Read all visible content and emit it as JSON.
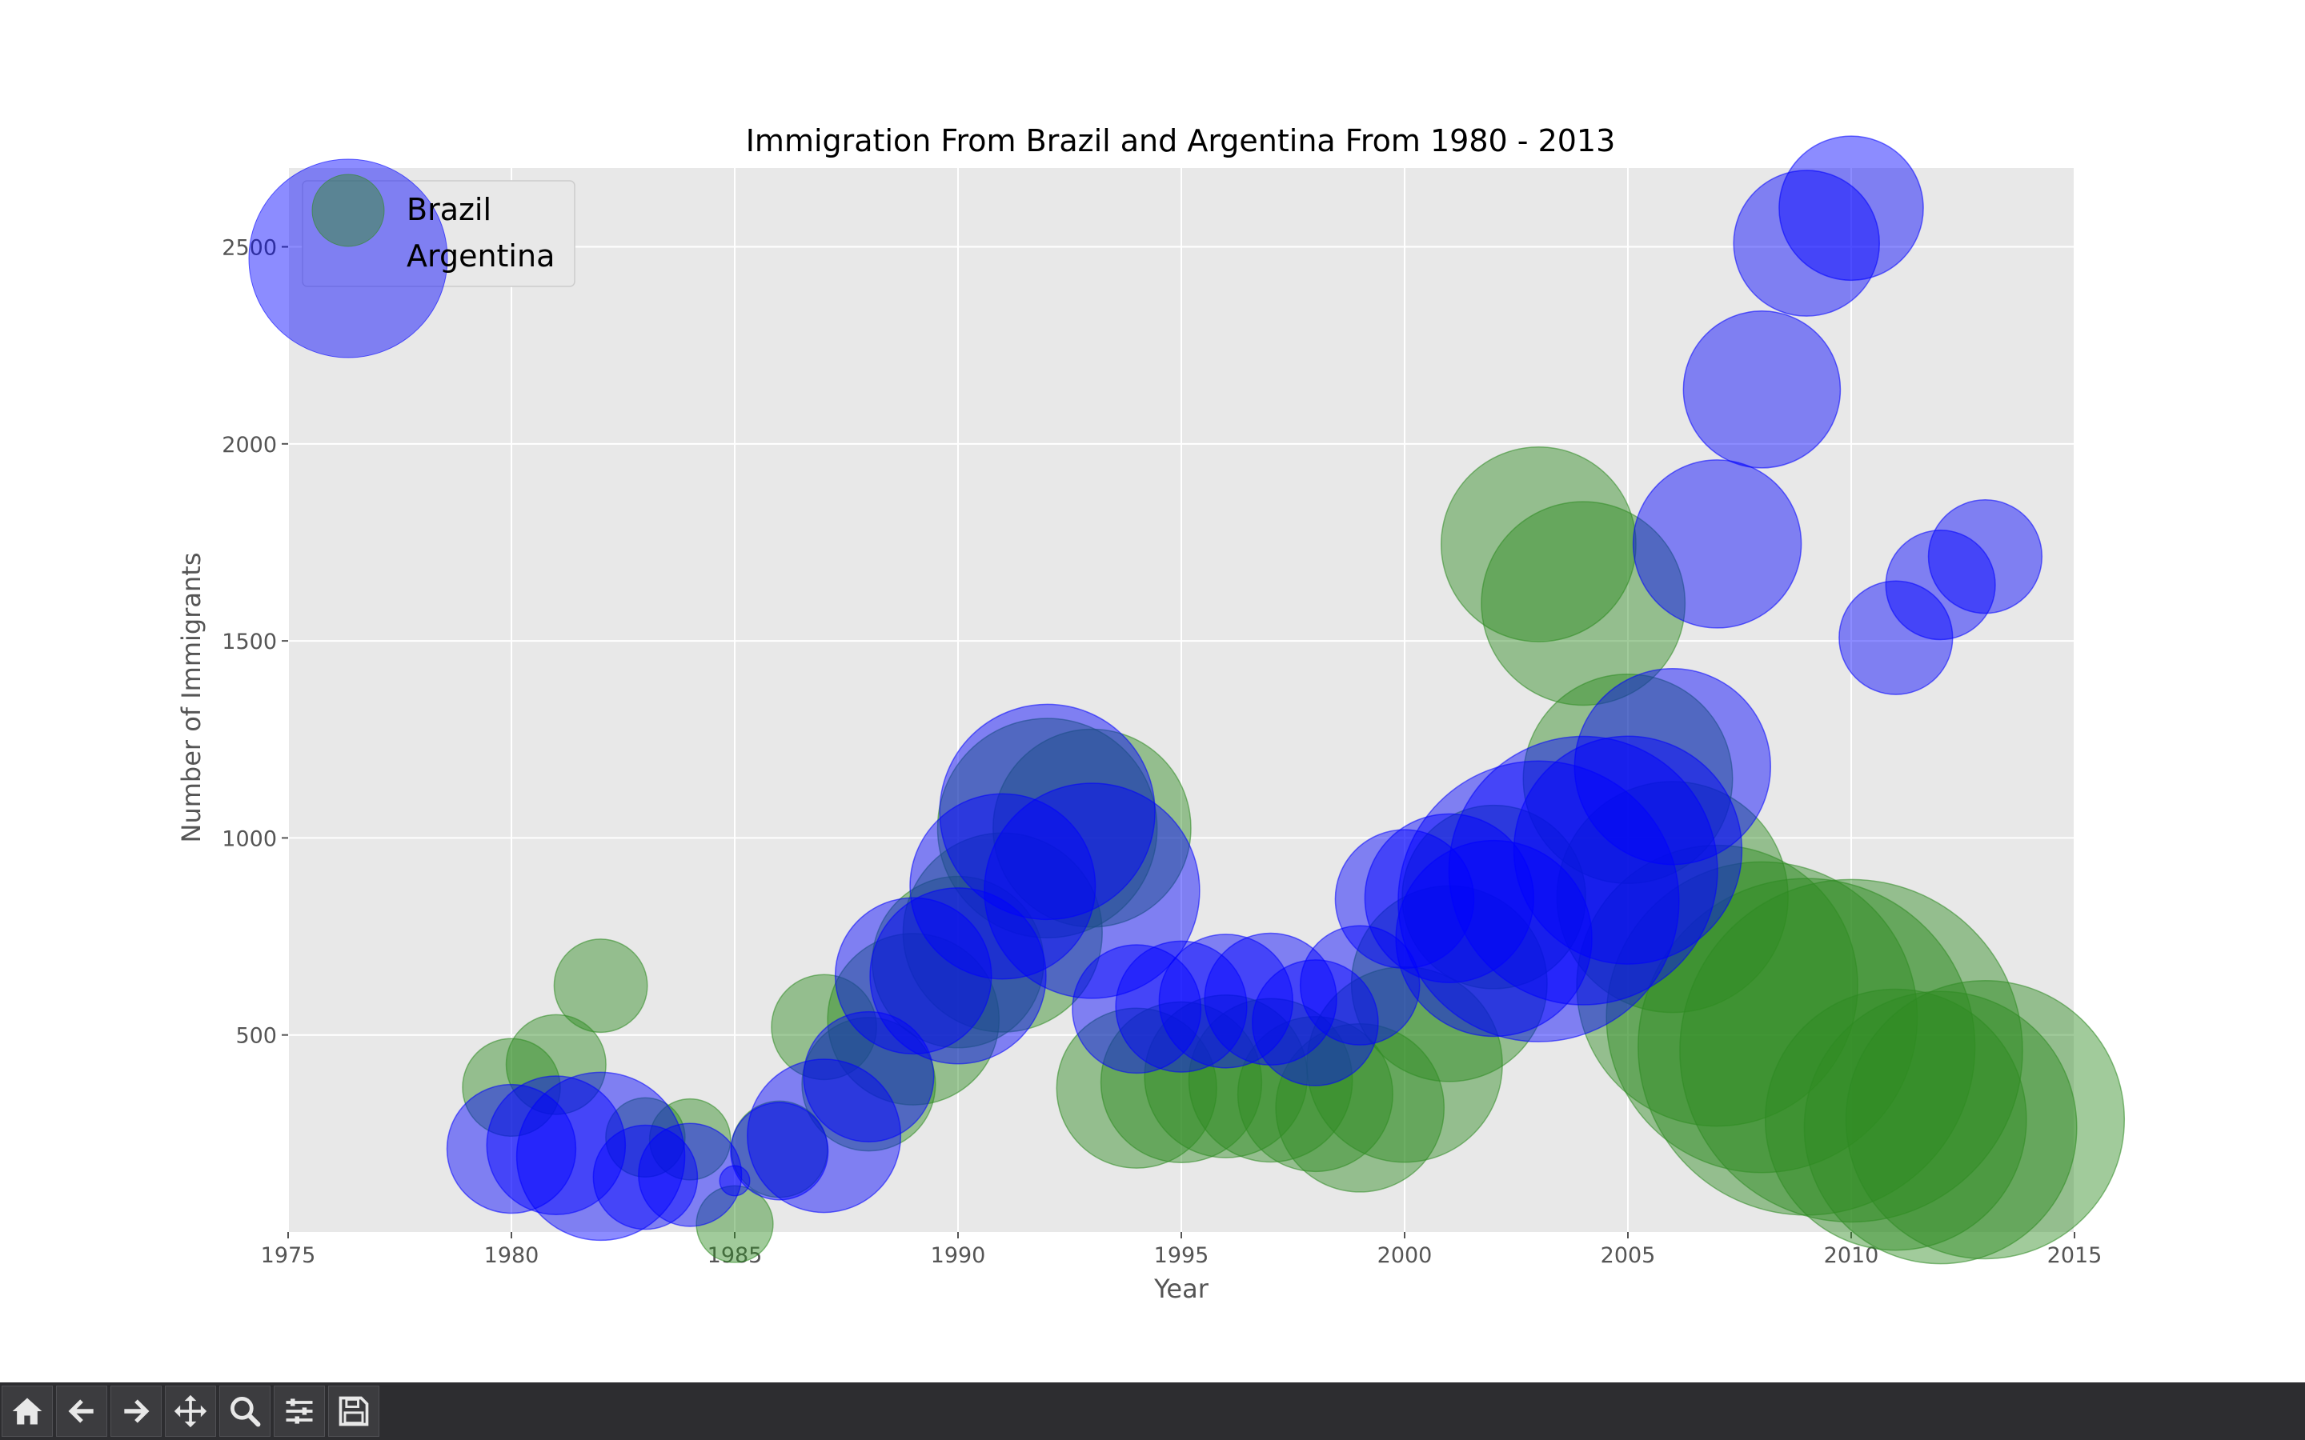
{
  "window": {
    "toolbar": [
      {
        "id": "home",
        "icon": "home-icon"
      },
      {
        "id": "back",
        "icon": "arrow-left-icon"
      },
      {
        "id": "forward",
        "icon": "arrow-right-icon"
      },
      {
        "id": "pan",
        "icon": "move-icon"
      },
      {
        "id": "zoom",
        "icon": "magnifier-icon"
      },
      {
        "id": "configure",
        "icon": "sliders-icon"
      },
      {
        "id": "save",
        "icon": "floppy-disk-icon"
      }
    ]
  },
  "chart_data": {
    "type": "scatter",
    "style": "bubble",
    "title": "Immigration From Brazil and Argentina From 1980 - 2013",
    "xlabel": "Year",
    "ylabel": "Number of Immigrants",
    "xlim": [
      1975,
      2015
    ],
    "ylim": [
      0,
      2700
    ],
    "xticks": [
      1975,
      1980,
      1985,
      1990,
      1995,
      2000,
      2005,
      2010,
      2015
    ],
    "yticks": [
      500,
      1000,
      1500,
      2000,
      2500
    ],
    "grid": true,
    "legend": "upper-left",
    "x": [
      1980,
      1981,
      1982,
      1983,
      1984,
      1985,
      1986,
      1987,
      1988,
      1989,
      1990,
      1991,
      1992,
      1993,
      1994,
      1995,
      1996,
      1997,
      1998,
      1999,
      2000,
      2001,
      2002,
      2003,
      2004,
      2005,
      2006,
      2007,
      2008,
      2009,
      2010,
      2011,
      2012,
      2013
    ],
    "series": [
      {
        "name": "Brazil",
        "color": "#0000ff",
        "alpha": 0.45,
        "values": [
          211,
          220,
          192,
          139,
          145,
          130,
          205,
          244,
          394,
          650,
          650,
          877,
          1066,
          866,
          566,
          572,
          586,
          591,
          531,
          626,
          845,
          847,
          745,
          839,
          917,
          969,
          1181,
          1746,
          2138,
          2509,
          2598,
          1508,
          1642,
          1714
        ],
        "bubble_values": [
          367,
          425,
          625,
          240,
          235,
          20,
          210,
          520,
          375,
          540,
          685,
          760,
          1025,
          1025,
          365,
          380,
          395,
          385,
          350,
          315,
          425,
          630,
          850,
          1745,
          1595,
          1150,
          850,
          625,
          545,
          470,
          460,
          285,
          265,
          285
        ]
      },
      {
        "name": "Argentina",
        "color": "#2e8b22",
        "alpha": 0.45,
        "values": [
          367,
          425,
          625,
          240,
          235,
          20,
          210,
          520,
          375,
          540,
          685,
          760,
          1025,
          1025,
          365,
          380,
          395,
          385,
          350,
          315,
          425,
          630,
          850,
          1745,
          1595,
          1150,
          850,
          625,
          545,
          470,
          460,
          285,
          265,
          285
        ],
        "bubble_values": [
          211,
          220,
          192,
          139,
          145,
          130,
          205,
          244,
          394,
          650,
          650,
          877,
          1066,
          866,
          566,
          572,
          586,
          591,
          531,
          626,
          845,
          847,
          745,
          839,
          917,
          969,
          1181,
          1746,
          2138,
          2509,
          2598,
          1508,
          1642,
          1714
        ]
      }
    ]
  }
}
